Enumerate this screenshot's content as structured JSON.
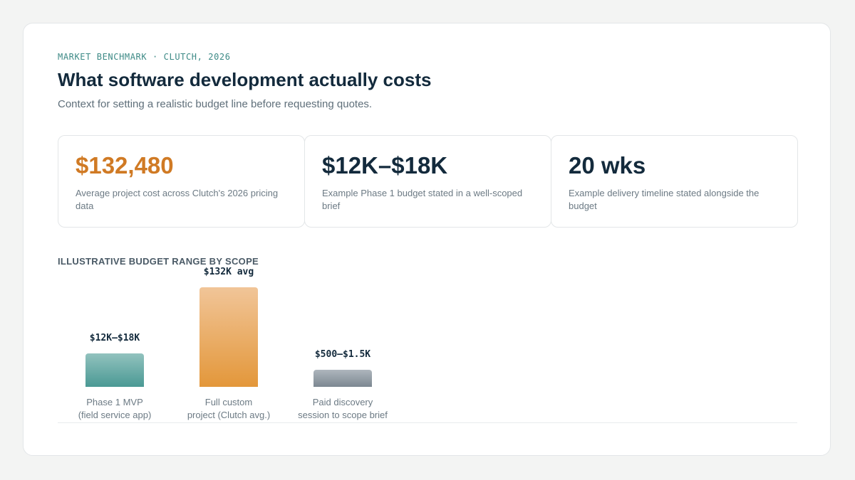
{
  "header": {
    "eyebrow": "MARKET BENCHMARK · CLUTCH, 2026",
    "title": "What software development actually costs",
    "subtitle": "Context for setting a realistic budget line before requesting quotes."
  },
  "stats": [
    {
      "value": "$132,480",
      "description": "Average project cost across Clutch's 2026 pricing data"
    },
    {
      "value": "$12K–$18K",
      "description": "Example Phase 1 budget stated in a well-scoped brief"
    },
    {
      "value": "20 wks",
      "description": "Example delivery timeline stated alongside the budget"
    }
  ],
  "colors": {
    "accent_orange": "#d07a24",
    "teal": "#3d8a86",
    "navy": "#132a3c",
    "bar_teal": "#4a9994",
    "bar_orange": "#e3973a",
    "bar_slate": "#7c8791"
  },
  "chart_data": {
    "type": "bar",
    "title": "ILLUSTRATIVE BUDGET RANGE BY SCOPE",
    "bars": [
      {
        "label_lines": [
          "Phase 1 MVP",
          "(field service app)"
        ],
        "value_label": "$12K–$18K",
        "low": 12000,
        "high": 18000,
        "value": 15000,
        "color_top": "#92c2be",
        "color_bottom": "#4a9994"
      },
      {
        "label_lines": [
          "Full custom",
          "project (Clutch avg.)"
        ],
        "value_label": "$132K avg",
        "low": 132480,
        "high": 132480,
        "value": 132480,
        "color_top": "#f1c598",
        "color_bottom": "#e3973a"
      },
      {
        "label_lines": [
          "Paid discovery",
          "session to scope brief"
        ],
        "value_label": "$500–$1.5K",
        "low": 500,
        "high": 1500,
        "value": 1000,
        "color_top": "#aeb6bd",
        "color_bottom": "#7c8791"
      }
    ],
    "scale": "sqrt",
    "ylim": [
      0,
      132480
    ],
    "grid": false,
    "legend": "none"
  }
}
